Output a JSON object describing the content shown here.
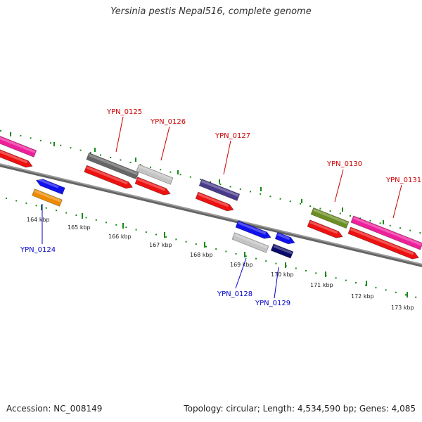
{
  "title": "Yersinia pestis Nepal516, complete genome",
  "footer": {
    "accession": "Accession: NC_008149",
    "stats": "Topology: circular; Length: 4,534,590 bp; Genes: 4,085"
  },
  "colors": {
    "backbone": "#888888",
    "tick": "#1a8a1a",
    "forward_label": "#cc0000",
    "reverse_label": "#0000cc"
  },
  "ticks": [
    {
      "label": "164 kbp"
    },
    {
      "label": "165 kbp"
    },
    {
      "label": "166 kbp"
    },
    {
      "label": "167 kbp"
    },
    {
      "label": "168 kbp"
    },
    {
      "label": "169 kbp"
    },
    {
      "label": "170 kbp"
    },
    {
      "label": "171 kbp"
    },
    {
      "label": "172 kbp"
    },
    {
      "label": "173 kbp"
    }
  ],
  "gene_labels": [
    {
      "text": "YPN_0124",
      "strand": "reverse"
    },
    {
      "text": "YPN_0125",
      "strand": "forward"
    },
    {
      "text": "YPN_0126",
      "strand": "forward"
    },
    {
      "text": "YPN_0127",
      "strand": "forward"
    },
    {
      "text": "YPN_0128",
      "strand": "reverse"
    },
    {
      "text": "YPN_0129",
      "strand": "reverse"
    },
    {
      "text": "YPN_0130",
      "strand": "forward"
    },
    {
      "text": "YPN_0131",
      "strand": "forward"
    }
  ],
  "features": [
    {
      "name": "pink-gene-left",
      "color": "#ee1f9a"
    },
    {
      "name": "red-cds-left",
      "color": "#ee1111"
    },
    {
      "name": "blue-gene-0124",
      "color": "#1111ee"
    },
    {
      "name": "orange-gene-0124",
      "color": "#ee8a00"
    },
    {
      "name": "gray-gene-0125",
      "color": "#666666"
    },
    {
      "name": "red-cds-0125",
      "color": "#ee1111"
    },
    {
      "name": "lightgray-gene-0126",
      "color": "#c4c4c4"
    },
    {
      "name": "red-cds-0126",
      "color": "#ee1111"
    },
    {
      "name": "purple-gene-0127",
      "color": "#4a3a8a"
    },
    {
      "name": "red-cds-0127",
      "color": "#ee1111"
    },
    {
      "name": "blue-gene-0128",
      "color": "#1111ee"
    },
    {
      "name": "lightgray-gene-0128",
      "color": "#c4c4c4"
    },
    {
      "name": "blue-gene-0129",
      "color": "#1111ee"
    },
    {
      "name": "navy-gene-0129",
      "color": "#0a0a6a"
    },
    {
      "name": "olive-gene-0130",
      "color": "#6b8e23"
    },
    {
      "name": "red-cds-0130",
      "color": "#ee1111"
    },
    {
      "name": "pink-gene-0131",
      "color": "#ee1f9a"
    },
    {
      "name": "red-cds-0131",
      "color": "#ee1111"
    }
  ]
}
